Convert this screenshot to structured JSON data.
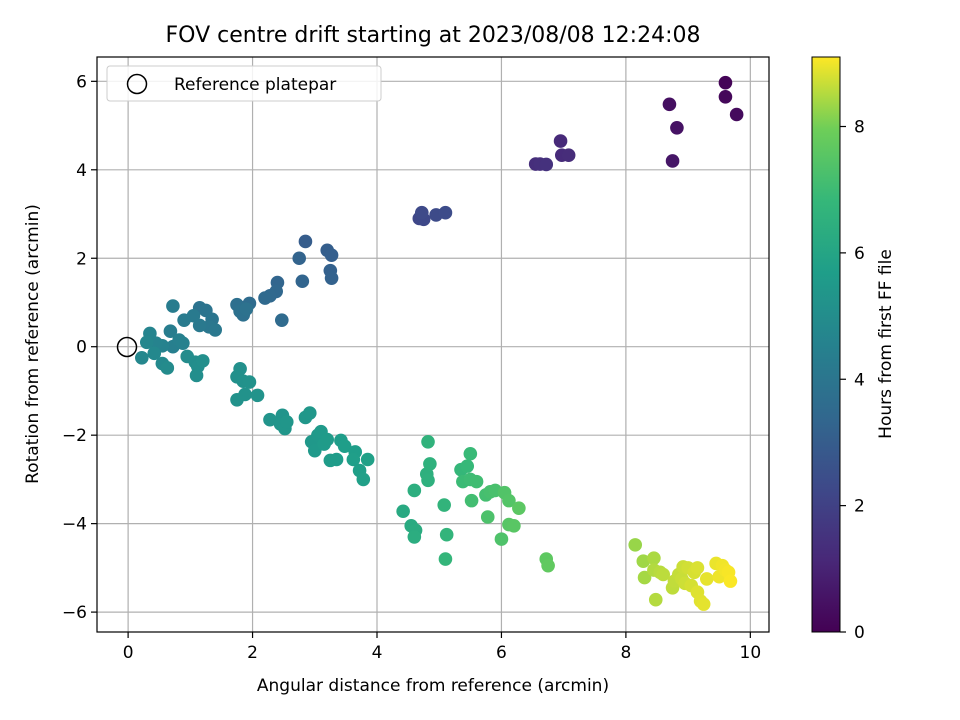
{
  "chart_data": {
    "type": "scatter",
    "title": "FOV centre drift starting at 2023/08/08 12:24:08",
    "xlabel": "Angular distance from reference (arcmin)",
    "ylabel": "Rotation from reference (arcmin)",
    "xlim": [
      -0.5,
      10.3
    ],
    "ylim": [
      -6.45,
      6.55
    ],
    "xticks": [
      0,
      2,
      4,
      6,
      8,
      10
    ],
    "yticks": [
      -6,
      -4,
      -2,
      0,
      2,
      4,
      6
    ],
    "grid": true,
    "legend": {
      "label": "Reference platepar",
      "placement": "top-left",
      "marker": "open-circle"
    },
    "reference_point": {
      "x": 0,
      "y": 0
    },
    "colormap": "viridis",
    "colorbar": {
      "label": "Hours from first FF file",
      "range": [
        0,
        9.1
      ],
      "ticks": [
        0,
        2,
        4,
        6,
        8
      ]
    },
    "points": [
      {
        "x": 9.6,
        "y": 5.97,
        "h": 0.1
      },
      {
        "x": 9.6,
        "y": 5.65,
        "h": 0.2
      },
      {
        "x": 9.78,
        "y": 5.25,
        "h": 0.3
      },
      {
        "x": 8.7,
        "y": 5.48,
        "h": 0.4
      },
      {
        "x": 8.82,
        "y": 4.95,
        "h": 0.5
      },
      {
        "x": 8.75,
        "y": 4.2,
        "h": 0.6
      },
      {
        "x": 6.95,
        "y": 4.65,
        "h": 1.2
      },
      {
        "x": 6.97,
        "y": 4.33,
        "h": 1.25
      },
      {
        "x": 7.08,
        "y": 4.33,
        "h": 1.3
      },
      {
        "x": 6.55,
        "y": 4.13,
        "h": 1.35
      },
      {
        "x": 6.62,
        "y": 4.13,
        "h": 1.4
      },
      {
        "x": 6.72,
        "y": 4.12,
        "h": 1.45
      },
      {
        "x": 4.68,
        "y": 2.9,
        "h": 2.2
      },
      {
        "x": 4.75,
        "y": 2.88,
        "h": 2.25
      },
      {
        "x": 4.72,
        "y": 3.03,
        "h": 2.3
      },
      {
        "x": 4.95,
        "y": 2.98,
        "h": 2.35
      },
      {
        "x": 5.1,
        "y": 3.03,
        "h": 2.4
      },
      {
        "x": 2.85,
        "y": 2.38,
        "h": 3.0
      },
      {
        "x": 3.2,
        "y": 2.18,
        "h": 3.05
      },
      {
        "x": 3.27,
        "y": 2.07,
        "h": 3.1
      },
      {
        "x": 3.25,
        "y": 1.72,
        "h": 3.15
      },
      {
        "x": 3.27,
        "y": 1.55,
        "h": 3.2
      },
      {
        "x": 2.75,
        "y": 2.0,
        "h": 3.25
      },
      {
        "x": 2.8,
        "y": 1.48,
        "h": 3.3
      },
      {
        "x": 2.4,
        "y": 1.45,
        "h": 3.35
      },
      {
        "x": 2.38,
        "y": 1.25,
        "h": 3.4
      },
      {
        "x": 2.28,
        "y": 1.15,
        "h": 3.45
      },
      {
        "x": 2.2,
        "y": 1.1,
        "h": 3.5
      },
      {
        "x": 2.47,
        "y": 0.6,
        "h": 3.55
      },
      {
        "x": 1.95,
        "y": 0.98,
        "h": 3.6
      },
      {
        "x": 1.85,
        "y": 0.88,
        "h": 3.65
      },
      {
        "x": 1.75,
        "y": 0.95,
        "h": 3.7
      },
      {
        "x": 1.85,
        "y": 0.72,
        "h": 3.75
      },
      {
        "x": 1.8,
        "y": 0.8,
        "h": 3.8
      },
      {
        "x": 1.9,
        "y": 0.85,
        "h": 3.85
      },
      {
        "x": 1.15,
        "y": 0.88,
        "h": 3.9
      },
      {
        "x": 1.25,
        "y": 0.82,
        "h": 3.95
      },
      {
        "x": 1.35,
        "y": 0.62,
        "h": 4.0
      },
      {
        "x": 1.3,
        "y": 0.45,
        "h": 4.05
      },
      {
        "x": 1.4,
        "y": 0.38,
        "h": 4.1
      },
      {
        "x": 1.15,
        "y": 0.48,
        "h": 4.15
      },
      {
        "x": 1.05,
        "y": 0.7,
        "h": 4.2
      },
      {
        "x": 0.9,
        "y": 0.6,
        "h": 4.25
      },
      {
        "x": 0.72,
        "y": 0.92,
        "h": 4.3
      },
      {
        "x": 0.68,
        "y": 0.35,
        "h": 4.35
      },
      {
        "x": 0.72,
        "y": 0.0,
        "h": 4.4
      },
      {
        "x": 0.82,
        "y": 0.15,
        "h": 4.45
      },
      {
        "x": 0.88,
        "y": 0.08,
        "h": 4.5
      },
      {
        "x": 0.55,
        "y": 0.02,
        "h": 4.55
      },
      {
        "x": 0.45,
        "y": 0.08,
        "h": 4.6
      },
      {
        "x": 0.35,
        "y": 0.3,
        "h": 4.65
      },
      {
        "x": 0.3,
        "y": 0.1,
        "h": 4.7
      },
      {
        "x": 0.22,
        "y": -0.25,
        "h": 4.75
      },
      {
        "x": 0.42,
        "y": -0.15,
        "h": 4.8
      },
      {
        "x": 0.55,
        "y": -0.38,
        "h": 4.85
      },
      {
        "x": 0.63,
        "y": -0.48,
        "h": 4.9
      },
      {
        "x": 0.95,
        "y": -0.22,
        "h": 4.95
      },
      {
        "x": 1.08,
        "y": -0.35,
        "h": 5.0
      },
      {
        "x": 1.12,
        "y": -0.45,
        "h": 5.02
      },
      {
        "x": 1.1,
        "y": -0.65,
        "h": 5.05
      },
      {
        "x": 1.2,
        "y": -0.32,
        "h": 5.08
      },
      {
        "x": 1.8,
        "y": -0.5,
        "h": 5.1
      },
      {
        "x": 1.75,
        "y": -0.68,
        "h": 5.12
      },
      {
        "x": 1.85,
        "y": -0.78,
        "h": 5.15
      },
      {
        "x": 1.95,
        "y": -0.8,
        "h": 5.18
      },
      {
        "x": 1.88,
        "y": -1.08,
        "h": 5.2
      },
      {
        "x": 1.75,
        "y": -1.2,
        "h": 5.22
      },
      {
        "x": 2.08,
        "y": -1.1,
        "h": 5.25
      },
      {
        "x": 2.28,
        "y": -1.65,
        "h": 5.28
      },
      {
        "x": 2.48,
        "y": -1.55,
        "h": 5.3
      },
      {
        "x": 2.45,
        "y": -1.75,
        "h": 5.32
      },
      {
        "x": 2.52,
        "y": -1.85,
        "h": 5.35
      },
      {
        "x": 2.55,
        "y": -1.7,
        "h": 5.38
      },
      {
        "x": 2.85,
        "y": -1.6,
        "h": 5.4
      },
      {
        "x": 2.92,
        "y": -1.5,
        "h": 5.42
      },
      {
        "x": 2.95,
        "y": -2.15,
        "h": 5.45
      },
      {
        "x": 3.05,
        "y": -2.0,
        "h": 5.48
      },
      {
        "x": 3.0,
        "y": -2.35,
        "h": 5.5
      },
      {
        "x": 3.1,
        "y": -1.92,
        "h": 5.52
      },
      {
        "x": 3.15,
        "y": -2.2,
        "h": 5.55
      },
      {
        "x": 3.2,
        "y": -2.1,
        "h": 5.58
      },
      {
        "x": 3.25,
        "y": -2.57,
        "h": 5.6
      },
      {
        "x": 3.35,
        "y": -2.55,
        "h": 5.62
      },
      {
        "x": 3.42,
        "y": -2.12,
        "h": 5.65
      },
      {
        "x": 3.48,
        "y": -2.25,
        "h": 5.68
      },
      {
        "x": 3.65,
        "y": -2.38,
        "h": 5.7
      },
      {
        "x": 3.62,
        "y": -2.55,
        "h": 5.72
      },
      {
        "x": 3.72,
        "y": -2.8,
        "h": 5.75
      },
      {
        "x": 3.78,
        "y": -3.0,
        "h": 5.78
      },
      {
        "x": 3.85,
        "y": -2.55,
        "h": 5.8
      },
      {
        "x": 4.42,
        "y": -3.72,
        "h": 6.2
      },
      {
        "x": 4.55,
        "y": -4.05,
        "h": 6.25
      },
      {
        "x": 4.62,
        "y": -4.15,
        "h": 6.3
      },
      {
        "x": 4.6,
        "y": -4.3,
        "h": 6.35
      },
      {
        "x": 4.6,
        "y": -3.25,
        "h": 6.4
      },
      {
        "x": 4.8,
        "y": -2.88,
        "h": 6.45
      },
      {
        "x": 4.82,
        "y": -3.02,
        "h": 6.5
      },
      {
        "x": 4.85,
        "y": -2.65,
        "h": 6.55
      },
      {
        "x": 4.82,
        "y": -2.15,
        "h": 6.6
      },
      {
        "x": 5.08,
        "y": -3.58,
        "h": 6.65
      },
      {
        "x": 5.12,
        "y": -4.25,
        "h": 6.7
      },
      {
        "x": 5.1,
        "y": -4.8,
        "h": 6.75
      },
      {
        "x": 5.35,
        "y": -2.78,
        "h": 6.8
      },
      {
        "x": 5.45,
        "y": -2.7,
        "h": 6.85
      },
      {
        "x": 5.5,
        "y": -2.42,
        "h": 6.9
      },
      {
        "x": 5.38,
        "y": -3.05,
        "h": 6.95
      },
      {
        "x": 5.5,
        "y": -3.0,
        "h": 7.0
      },
      {
        "x": 5.6,
        "y": -3.05,
        "h": 7.05
      },
      {
        "x": 5.52,
        "y": -3.48,
        "h": 7.1
      },
      {
        "x": 5.75,
        "y": -3.35,
        "h": 7.15
      },
      {
        "x": 5.82,
        "y": -3.28,
        "h": 7.2
      },
      {
        "x": 5.9,
        "y": -3.25,
        "h": 7.25
      },
      {
        "x": 5.78,
        "y": -3.85,
        "h": 7.3
      },
      {
        "x": 6.0,
        "y": -4.35,
        "h": 7.35
      },
      {
        "x": 6.05,
        "y": -3.3,
        "h": 7.4
      },
      {
        "x": 6.12,
        "y": -3.48,
        "h": 7.45
      },
      {
        "x": 6.12,
        "y": -4.02,
        "h": 7.5
      },
      {
        "x": 6.2,
        "y": -4.05,
        "h": 7.55
      },
      {
        "x": 6.28,
        "y": -3.65,
        "h": 7.6
      },
      {
        "x": 6.72,
        "y": -4.8,
        "h": 7.65
      },
      {
        "x": 6.75,
        "y": -4.95,
        "h": 7.7
      },
      {
        "x": 8.15,
        "y": -4.48,
        "h": 8.3
      },
      {
        "x": 8.28,
        "y": -4.85,
        "h": 8.35
      },
      {
        "x": 8.3,
        "y": -5.22,
        "h": 8.4
      },
      {
        "x": 8.45,
        "y": -4.78,
        "h": 8.45
      },
      {
        "x": 8.45,
        "y": -5.05,
        "h": 8.5
      },
      {
        "x": 8.48,
        "y": -5.72,
        "h": 8.52
      },
      {
        "x": 8.55,
        "y": -5.1,
        "h": 8.55
      },
      {
        "x": 8.6,
        "y": -5.15,
        "h": 8.58
      },
      {
        "x": 8.75,
        "y": -5.45,
        "h": 8.6
      },
      {
        "x": 8.78,
        "y": -5.3,
        "h": 8.62
      },
      {
        "x": 8.85,
        "y": -5.15,
        "h": 8.65
      },
      {
        "x": 8.9,
        "y": -5.25,
        "h": 8.68
      },
      {
        "x": 8.92,
        "y": -4.98,
        "h": 8.7
      },
      {
        "x": 8.95,
        "y": -5.35,
        "h": 8.72
      },
      {
        "x": 9.0,
        "y": -5.0,
        "h": 8.75
      },
      {
        "x": 9.05,
        "y": -5.4,
        "h": 8.78
      },
      {
        "x": 9.1,
        "y": -5.1,
        "h": 8.8
      },
      {
        "x": 9.15,
        "y": -5.0,
        "h": 8.82
      },
      {
        "x": 9.15,
        "y": -5.55,
        "h": 8.85
      },
      {
        "x": 9.2,
        "y": -5.75,
        "h": 8.88
      },
      {
        "x": 9.25,
        "y": -5.82,
        "h": 8.9
      },
      {
        "x": 9.3,
        "y": -5.25,
        "h": 8.92
      },
      {
        "x": 9.45,
        "y": -4.9,
        "h": 8.95
      },
      {
        "x": 9.5,
        "y": -5.2,
        "h": 8.98
      },
      {
        "x": 9.55,
        "y": -4.95,
        "h": 9.0
      },
      {
        "x": 9.6,
        "y": -5.05,
        "h": 9.02
      },
      {
        "x": 9.65,
        "y": -5.1,
        "h": 9.05
      },
      {
        "x": 9.68,
        "y": -5.3,
        "h": 9.08
      }
    ]
  }
}
